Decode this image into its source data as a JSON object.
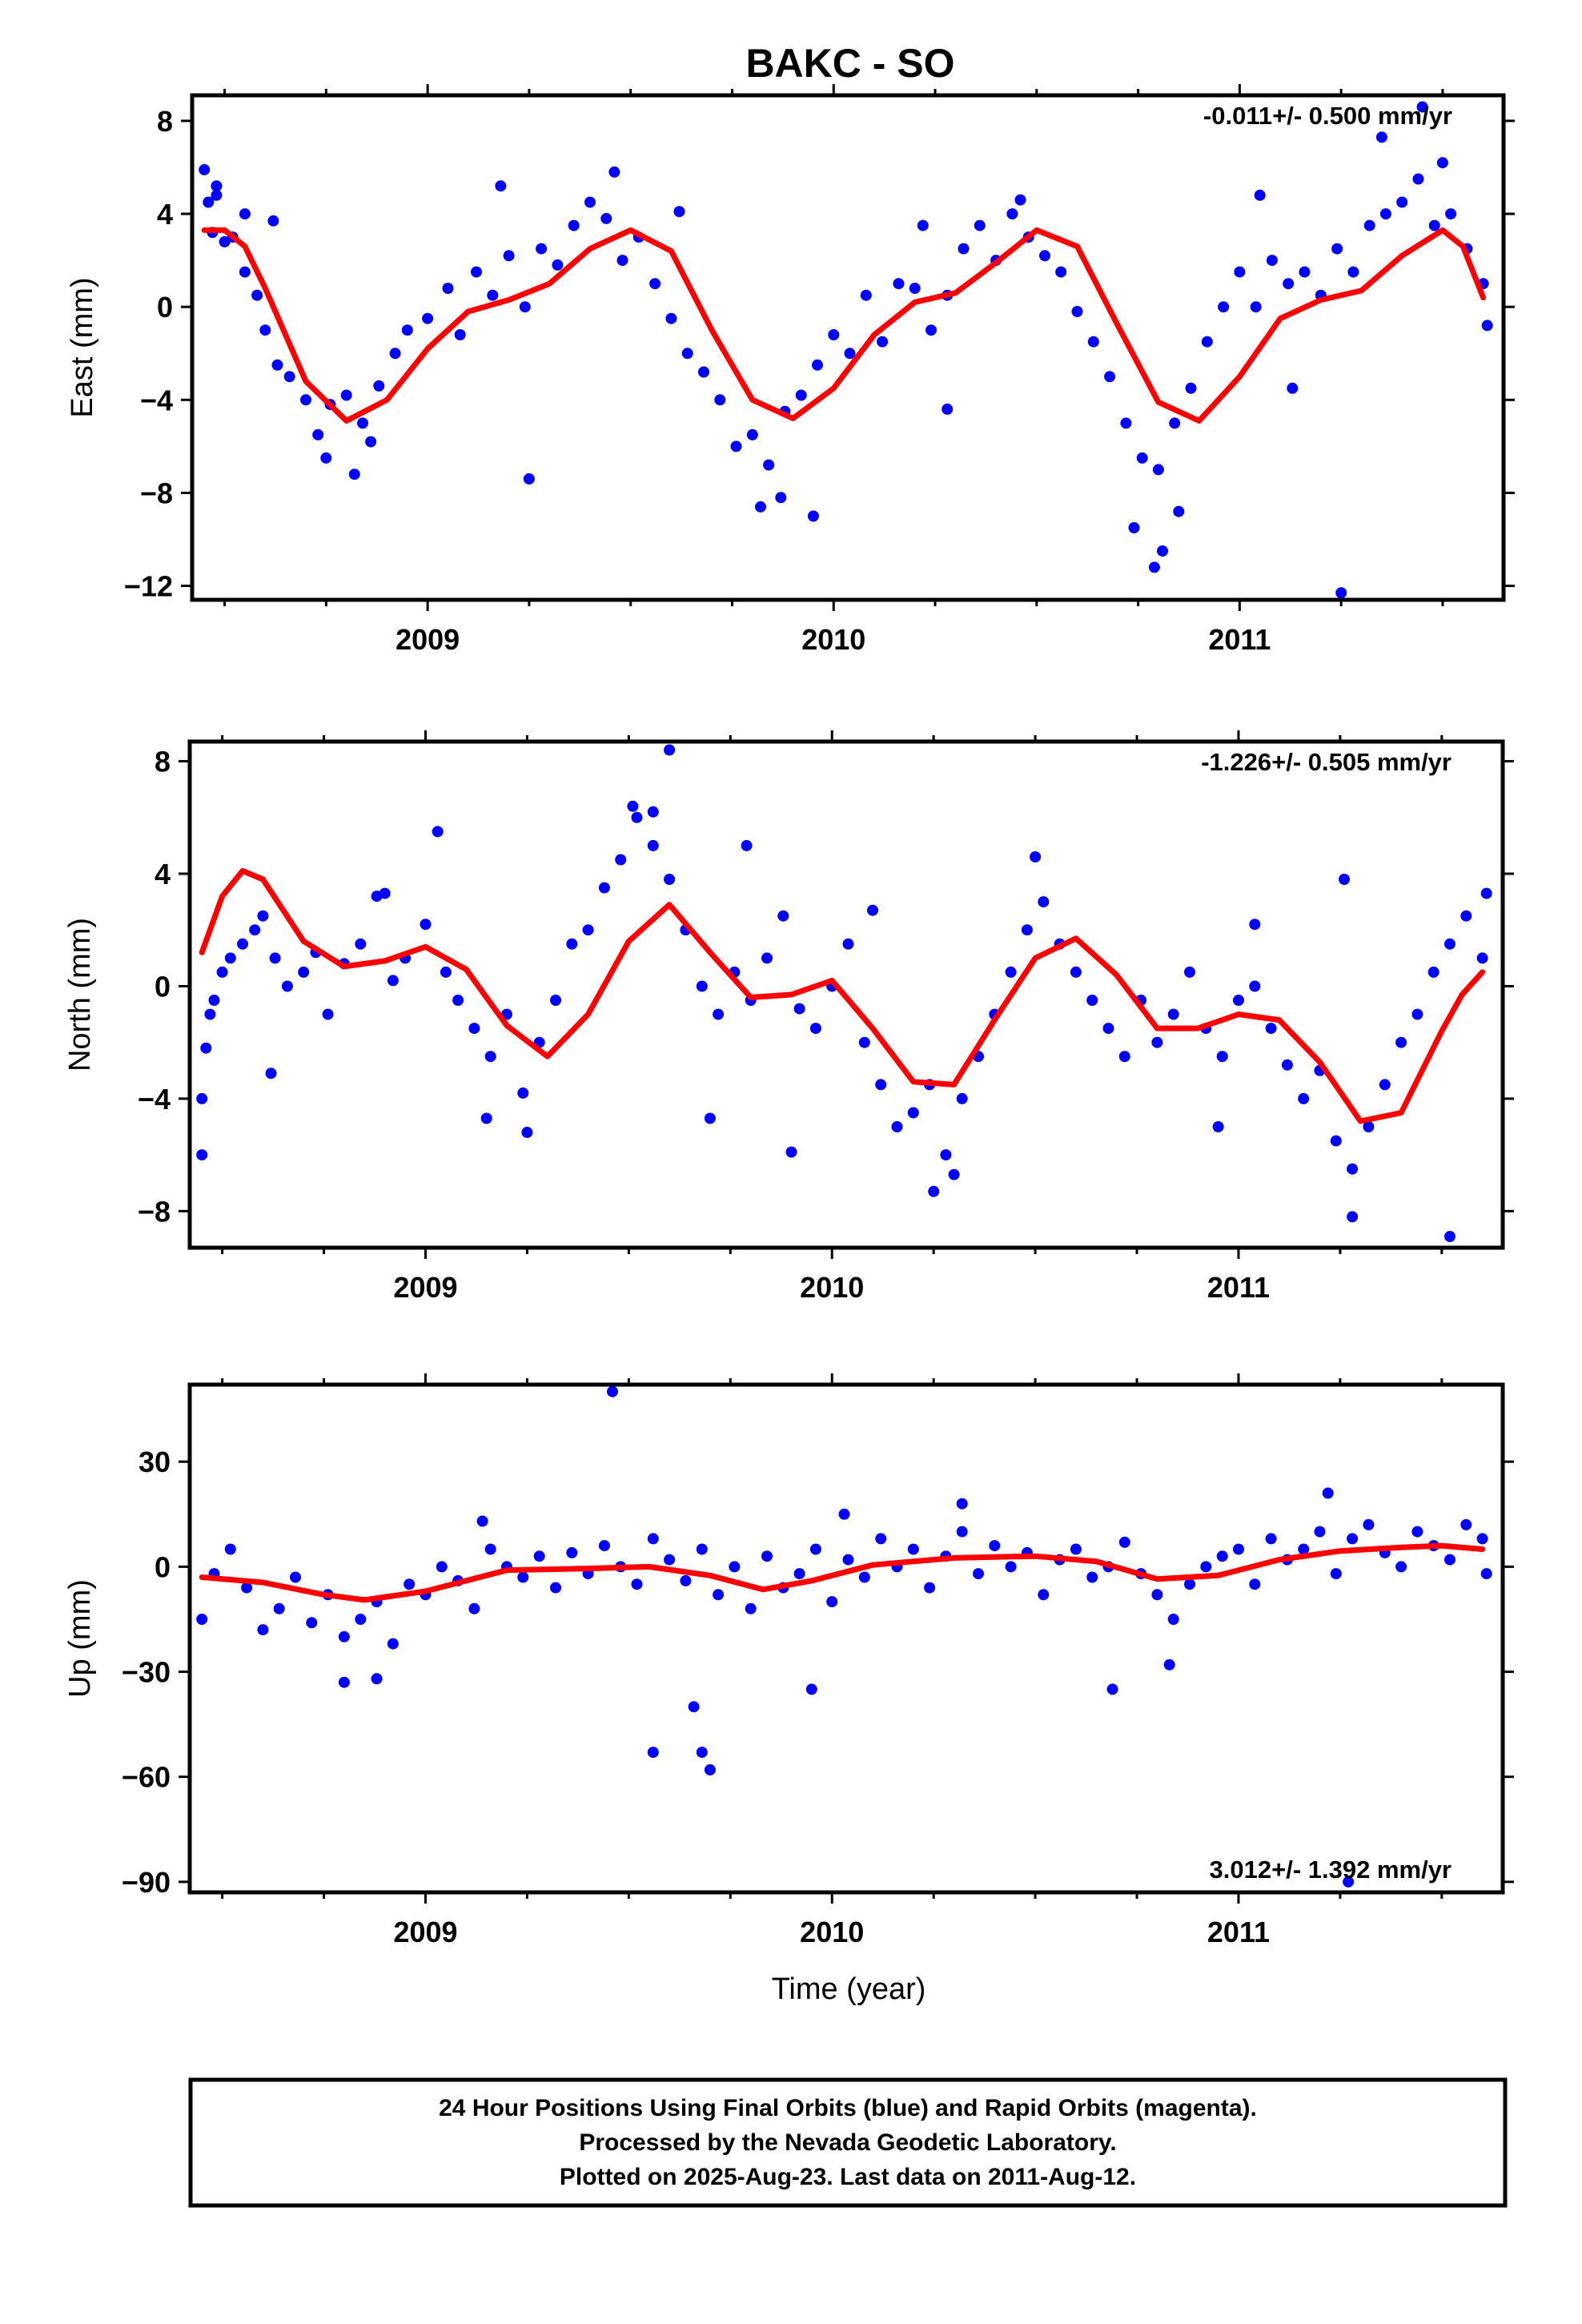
{
  "title": "BAKC - SO",
  "xlabel": "Time (year)",
  "legend_lines": [
    "24 Hour Positions Using Final Orbits (blue) and Rapid Orbits (magenta).",
    "Processed by the Nevada Geodetic Laboratory.",
    "Plotted on 2025-Aug-23. Last data on 2011-Aug-12."
  ],
  "colors": {
    "points": "#0000ff",
    "model": "#ff0000",
    "axes": "#000000"
  },
  "chart_data": [
    {
      "type": "scatter",
      "component": "East",
      "ylabel": "East (mm)",
      "rate_text": "-0.011+/- 0.500 mm/yr",
      "rate_position": "top-right",
      "xlim": [
        2008.42,
        2011.65
      ],
      "ylim": [
        -12.6,
        9.1
      ],
      "yticks": [
        8,
        4,
        0,
        -4,
        -8,
        -12
      ],
      "ytick_labels": [
        "8",
        "4",
        "0",
        "−4",
        "−8",
        "−12"
      ],
      "xticks": [
        2009,
        2010,
        2011
      ],
      "xtick_labels": [
        "2009",
        "2010",
        "2011"
      ],
      "model_x": [
        2008.45,
        2008.5,
        2008.55,
        2008.6,
        2008.7,
        2008.8,
        2008.9,
        2009.0,
        2009.1,
        2009.2,
        2009.3,
        2009.4,
        2009.5,
        2009.6,
        2009.7,
        2009.8,
        2009.9,
        2010.0,
        2010.1,
        2010.2,
        2010.3,
        2010.4,
        2010.5,
        2010.6,
        2010.7,
        2010.8,
        2010.9,
        2011.0,
        2011.1,
        2011.2,
        2011.3,
        2011.4,
        2011.5,
        2011.55,
        2011.6
      ],
      "model_y": [
        3.3,
        3.3,
        2.6,
        0.8,
        -3.2,
        -4.9,
        -4.0,
        -1.8,
        -0.2,
        0.3,
        1.0,
        2.5,
        3.3,
        2.4,
        -1.0,
        -4.0,
        -4.8,
        -3.5,
        -1.2,
        0.2,
        0.6,
        1.9,
        3.3,
        2.6,
        -0.8,
        -4.1,
        -4.9,
        -3.0,
        -0.5,
        0.3,
        0.7,
        2.2,
        3.3,
        2.6,
        0.4
      ],
      "points": {
        "x": [
          2008.45,
          2008.46,
          2008.47,
          2008.48,
          2008.5,
          2008.52,
          2008.55,
          2008.58,
          2008.6,
          2008.63,
          2008.66,
          2008.7,
          2008.73,
          2008.76,
          2008.8,
          2008.84,
          2008.88,
          2008.92,
          2008.95,
          2009.0,
          2009.05,
          2009.08,
          2009.12,
          2009.16,
          2009.2,
          2009.24,
          2009.28,
          2009.32,
          2009.36,
          2009.4,
          2009.44,
          2009.48,
          2009.52,
          2009.56,
          2009.6,
          2009.64,
          2009.68,
          2009.72,
          2009.76,
          2009.8,
          2009.84,
          2009.88,
          2009.92,
          2009.96,
          2010.0,
          2010.04,
          2010.08,
          2010.12,
          2010.16,
          2010.2,
          2010.24,
          2010.28,
          2010.32,
          2010.36,
          2010.4,
          2010.44,
          2010.48,
          2010.52,
          2010.56,
          2010.6,
          2010.64,
          2010.68,
          2010.72,
          2010.76,
          2010.8,
          2010.84,
          2010.88,
          2010.92,
          2010.96,
          2011.0,
          2011.04,
          2011.08,
          2011.12,
          2011.16,
          2011.2,
          2011.24,
          2011.28,
          2011.32,
          2011.36,
          2011.4,
          2011.44,
          2011.48,
          2011.52,
          2011.56,
          2011.6,
          2011.61,
          2008.48,
          2008.55,
          2008.62,
          2008.75,
          2008.82,
          2008.86,
          2009.18,
          2009.25,
          2009.46,
          2009.62,
          2009.82,
          2009.87,
          2009.95,
          2010.22,
          2010.28,
          2010.46,
          2010.74,
          2010.79,
          2010.81,
          2010.85,
          2011.05,
          2011.13,
          2011.25,
          2011.35,
          2011.45,
          2011.5
        ],
        "y": [
          5.9,
          4.5,
          3.2,
          4.8,
          2.8,
          3.0,
          1.5,
          0.5,
          -1.0,
          -2.5,
          -3.0,
          -4.0,
          -5.5,
          -4.2,
          -3.8,
          -5.0,
          -3.4,
          -2.0,
          -1.0,
          -0.5,
          0.8,
          -1.2,
          1.5,
          0.5,
          2.2,
          0.0,
          2.5,
          1.8,
          3.5,
          4.5,
          3.8,
          2.0,
          3.0,
          1.0,
          -0.5,
          -2.0,
          -2.8,
          -4.0,
          -6.0,
          -5.5,
          -6.8,
          -4.5,
          -3.8,
          -2.5,
          -1.2,
          -2.0,
          0.5,
          -1.5,
          1.0,
          0.8,
          -1.0,
          0.5,
          2.5,
          3.5,
          2.0,
          4.0,
          3.0,
          2.2,
          1.5,
          -0.2,
          -1.5,
          -3.0,
          -5.0,
          -6.5,
          -7.0,
          -5.0,
          -3.5,
          -1.5,
          0.0,
          1.5,
          0.0,
          2.0,
          1.0,
          1.5,
          0.5,
          2.5,
          1.5,
          3.5,
          4.0,
          4.5,
          5.5,
          3.5,
          4.0,
          2.5,
          1.0,
          -0.8,
          5.2,
          4.0,
          3.7,
          -6.5,
          -7.2,
          -5.8,
          5.2,
          -7.4,
          5.8,
          4.1,
          -8.6,
          -8.2,
          -9.0,
          3.5,
          -4.4,
          4.6,
          -9.5,
          -11.2,
          -10.5,
          -8.8,
          4.8,
          -3.5,
          -12.3,
          7.3,
          8.6,
          6.2
        ]
      }
    },
    {
      "type": "scatter",
      "component": "North",
      "ylabel": "North (mm)",
      "rate_text": "-1.226+/- 0.505 mm/yr",
      "rate_position": "top-right",
      "xlim": [
        2008.42,
        2011.65
      ],
      "ylim": [
        -9.3,
        8.7
      ],
      "yticks": [
        8,
        4,
        0,
        -4,
        -8
      ],
      "ytick_labels": [
        "8",
        "4",
        "0",
        "−4",
        "−8"
      ],
      "xticks": [
        2009,
        2010,
        2011
      ],
      "xtick_labels": [
        "2009",
        "2010",
        "2011"
      ],
      "model_x": [
        2008.45,
        2008.5,
        2008.55,
        2008.6,
        2008.65,
        2008.7,
        2008.8,
        2008.9,
        2009.0,
        2009.1,
        2009.2,
        2009.3,
        2009.4,
        2009.5,
        2009.6,
        2009.7,
        2009.8,
        2009.9,
        2010.0,
        2010.1,
        2010.2,
        2010.3,
        2010.4,
        2010.5,
        2010.6,
        2010.7,
        2010.8,
        2010.9,
        2011.0,
        2011.1,
        2011.2,
        2011.3,
        2011.4,
        2011.5,
        2011.55,
        2011.6
      ],
      "model_y": [
        1.2,
        3.2,
        4.1,
        3.8,
        2.7,
        1.6,
        0.7,
        0.9,
        1.4,
        0.6,
        -1.4,
        -2.5,
        -1.0,
        1.6,
        2.9,
        1.2,
        -0.4,
        -0.3,
        0.2,
        -1.5,
        -3.4,
        -3.5,
        -1.2,
        1.0,
        1.7,
        0.4,
        -1.5,
        -1.5,
        -1.0,
        -1.2,
        -2.7,
        -4.8,
        -4.5,
        -1.6,
        -0.3,
        0.5
      ],
      "points": {
        "x": [
          2008.45,
          2008.46,
          2008.47,
          2008.48,
          2008.5,
          2008.52,
          2008.55,
          2008.58,
          2008.6,
          2008.63,
          2008.66,
          2008.7,
          2008.73,
          2008.76,
          2008.8,
          2008.84,
          2008.88,
          2008.92,
          2008.95,
          2009.0,
          2009.05,
          2009.08,
          2009.12,
          2009.16,
          2009.2,
          2009.24,
          2009.28,
          2009.32,
          2009.36,
          2009.4,
          2009.44,
          2009.48,
          2009.52,
          2009.56,
          2009.6,
          2009.64,
          2009.68,
          2009.72,
          2009.76,
          2009.8,
          2009.84,
          2009.88,
          2009.92,
          2009.96,
          2010.0,
          2010.04,
          2010.08,
          2010.12,
          2010.16,
          2010.2,
          2010.24,
          2010.28,
          2010.32,
          2010.36,
          2010.4,
          2010.44,
          2010.48,
          2010.52,
          2010.56,
          2010.6,
          2010.64,
          2010.68,
          2010.72,
          2010.76,
          2010.8,
          2010.84,
          2010.88,
          2010.92,
          2010.96,
          2011.0,
          2011.04,
          2011.08,
          2011.12,
          2011.16,
          2011.2,
          2011.24,
          2011.28,
          2011.32,
          2011.36,
          2011.4,
          2011.44,
          2011.48,
          2011.52,
          2011.56,
          2011.6,
          2011.61,
          2008.45,
          2008.62,
          2008.9,
          2009.03,
          2009.15,
          2009.25,
          2009.51,
          2009.56,
          2009.6,
          2009.7,
          2009.79,
          2009.9,
          2010.1,
          2010.25,
          2010.3,
          2010.5,
          2010.95,
          2011.04,
          2011.26,
          2011.28,
          2011.52
        ],
        "y": [
          -4.0,
          -2.2,
          -1.0,
          -0.5,
          0.5,
          1.0,
          1.5,
          2.0,
          2.5,
          1.0,
          0.0,
          0.5,
          1.2,
          -1.0,
          0.8,
          1.5,
          3.2,
          0.2,
          1.0,
          2.2,
          0.5,
          -0.5,
          -1.5,
          -2.5,
          -1.0,
          -3.8,
          -2.0,
          -0.5,
          1.5,
          2.0,
          3.5,
          4.5,
          6.0,
          5.0,
          3.8,
          2.0,
          0.0,
          -1.0,
          0.5,
          -0.5,
          1.0,
          2.5,
          -0.8,
          -1.5,
          0.0,
          1.5,
          -2.0,
          -3.5,
          -5.0,
          -4.5,
          -3.5,
          -6.0,
          -4.0,
          -2.5,
          -1.0,
          0.5,
          2.0,
          3.0,
          1.5,
          0.5,
          -0.5,
          -1.5,
          -2.5,
          -0.5,
          -2.0,
          -1.0,
          0.5,
          -1.5,
          -2.5,
          -0.5,
          0.0,
          -1.5,
          -2.8,
          -4.0,
          -3.0,
          -5.5,
          -6.5,
          -5.0,
          -3.5,
          -2.0,
          -1.0,
          0.5,
          1.5,
          2.5,
          1.0,
          3.3,
          -6.0,
          -3.1,
          3.3,
          5.5,
          -4.7,
          -5.2,
          6.4,
          6.2,
          8.4,
          -4.7,
          5.0,
          -5.9,
          2.7,
          -7.3,
          -6.7,
          4.6,
          -5.0,
          2.2,
          3.8,
          -8.2,
          -8.9
        ]
      }
    },
    {
      "type": "scatter",
      "component": "Up",
      "ylabel": "Up (mm)",
      "rate_text": "3.012+/- 1.392 mm/yr",
      "rate_position": "bottom-right",
      "xlim": [
        2008.42,
        2011.65
      ],
      "ylim": [
        -93,
        52
      ],
      "yticks": [
        30,
        0,
        -30,
        -60,
        -90
      ],
      "ytick_labels": [
        "30",
        "0",
        "−30",
        "−60",
        "−90"
      ],
      "xticks": [
        2009,
        2010,
        2011
      ],
      "xtick_labels": [
        "2009",
        "2010",
        "2011"
      ],
      "model_x": [
        2008.45,
        2008.6,
        2008.75,
        2008.85,
        2009.0,
        2009.2,
        2009.4,
        2009.55,
        2009.7,
        2009.83,
        2009.95,
        2010.1,
        2010.3,
        2010.5,
        2010.65,
        2010.8,
        2010.95,
        2011.1,
        2011.25,
        2011.4,
        2011.5,
        2011.6
      ],
      "model_y": [
        -3.0,
        -4.5,
        -8.0,
        -9.5,
        -7.0,
        -1.0,
        -0.5,
        0.0,
        -2.5,
        -6.5,
        -4.0,
        0.5,
        2.5,
        3.0,
        1.5,
        -3.5,
        -2.5,
        2.0,
        4.5,
        5.5,
        6.0,
        5.0
      ],
      "points": {
        "x": [
          2008.45,
          2008.48,
          2008.52,
          2008.56,
          2008.6,
          2008.64,
          2008.68,
          2008.72,
          2008.76,
          2008.8,
          2008.84,
          2008.88,
          2008.92,
          2008.96,
          2009.0,
          2009.04,
          2009.08,
          2009.12,
          2009.16,
          2009.2,
          2009.24,
          2009.28,
          2009.32,
          2009.36,
          2009.4,
          2009.44,
          2009.48,
          2009.52,
          2009.56,
          2009.6,
          2009.64,
          2009.68,
          2009.72,
          2009.76,
          2009.8,
          2009.84,
          2009.88,
          2009.92,
          2009.96,
          2010.0,
          2010.04,
          2010.08,
          2010.12,
          2010.16,
          2010.2,
          2010.24,
          2010.28,
          2010.32,
          2010.36,
          2010.4,
          2010.44,
          2010.48,
          2010.52,
          2010.56,
          2010.6,
          2010.64,
          2010.68,
          2010.72,
          2010.76,
          2010.8,
          2010.84,
          2010.88,
          2010.92,
          2010.96,
          2011.0,
          2011.04,
          2011.08,
          2011.12,
          2011.16,
          2011.2,
          2011.24,
          2011.28,
          2011.32,
          2011.36,
          2011.4,
          2011.44,
          2011.48,
          2011.52,
          2011.56,
          2011.6,
          2011.61,
          2009.46,
          2009.56,
          2009.66,
          2009.68,
          2009.7,
          2009.95,
          2008.8,
          2008.88,
          2010.69,
          2010.83,
          2011.27,
          2011.22,
          2010.03,
          2010.32,
          2009.14
        ],
        "y": [
          -15.0,
          -2.0,
          5.0,
          -6.0,
          -18.0,
          -12.0,
          -3.0,
          -16.0,
          -8.0,
          -20.0,
          -15.0,
          -10.0,
          -22.0,
          -5.0,
          -8.0,
          0.0,
          -4.0,
          -12.0,
          5.0,
          0.0,
          -3.0,
          3.0,
          -6.0,
          4.0,
          -2.0,
          6.0,
          0.0,
          -5.0,
          8.0,
          2.0,
          -4.0,
          5.0,
          -8.0,
          0.0,
          -12.0,
          3.0,
          -6.0,
          -2.0,
          5.0,
          -10.0,
          2.0,
          -3.0,
          8.0,
          0.0,
          5.0,
          -6.0,
          3.0,
          10.0,
          -2.0,
          6.0,
          0.0,
          4.0,
          -8.0,
          2.0,
          5.0,
          -3.0,
          0.0,
          7.0,
          -2.0,
          -8.0,
          -15.0,
          -5.0,
          0.0,
          3.0,
          5.0,
          -5.0,
          8.0,
          2.0,
          5.0,
          10.0,
          -2.0,
          8.0,
          12.0,
          4.0,
          0.0,
          10.0,
          6.0,
          2.0,
          12.0,
          8.0,
          -2.0,
          50.0,
          -53.0,
          -40.0,
          -53.0,
          -58.0,
          -35.0,
          -33.0,
          -32.0,
          -35.0,
          -28.0,
          -90.0,
          21.0,
          15.0,
          18.0,
          13.0
        ]
      }
    }
  ]
}
